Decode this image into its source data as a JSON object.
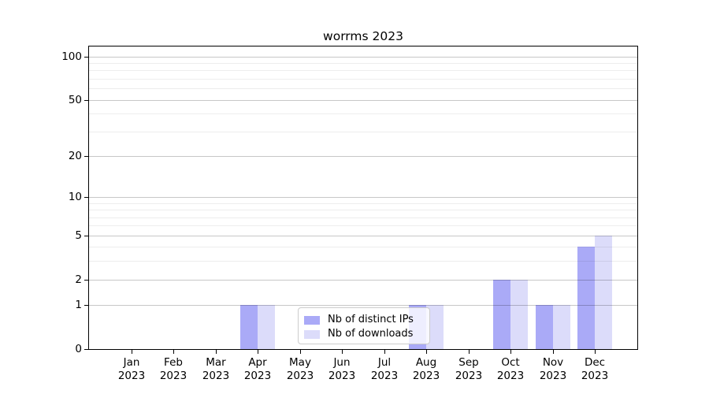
{
  "figure": {
    "background": "#ffffff"
  },
  "chart_data": {
    "type": "bar",
    "title": "worrms 2023",
    "categories": [
      "Jan",
      "Feb",
      "Mar",
      "Apr",
      "May",
      "Jun",
      "Jul",
      "Aug",
      "Sep",
      "Oct",
      "Nov",
      "Dec"
    ],
    "category_year": "2023",
    "series": [
      {
        "name": "Nb of distinct IPs",
        "color": "#aaaaf7",
        "values": [
          0,
          0,
          0,
          1,
          0,
          0,
          0,
          1,
          0,
          2,
          1,
          4
        ]
      },
      {
        "name": "Nb of downloads",
        "color": "#dcdcfa",
        "values": [
          0,
          0,
          0,
          1,
          0,
          0,
          0,
          1,
          0,
          2,
          1,
          5
        ]
      }
    ],
    "xlabel": "",
    "ylabel": "",
    "yscale": "log1p",
    "ylim": [
      0,
      117
    ],
    "yticks": [
      0,
      1,
      2,
      5,
      10,
      20,
      50,
      100
    ],
    "yticks_minor": [
      3,
      4,
      6,
      7,
      8,
      9,
      30,
      40,
      60,
      70,
      80,
      90
    ],
    "grid": "on",
    "legend_position": "lower center",
    "colors": {
      "major_grid": "#00000038",
      "minor_grid": "#00000012",
      "axis": "#000000",
      "legend_border": "#cccccc"
    }
  }
}
